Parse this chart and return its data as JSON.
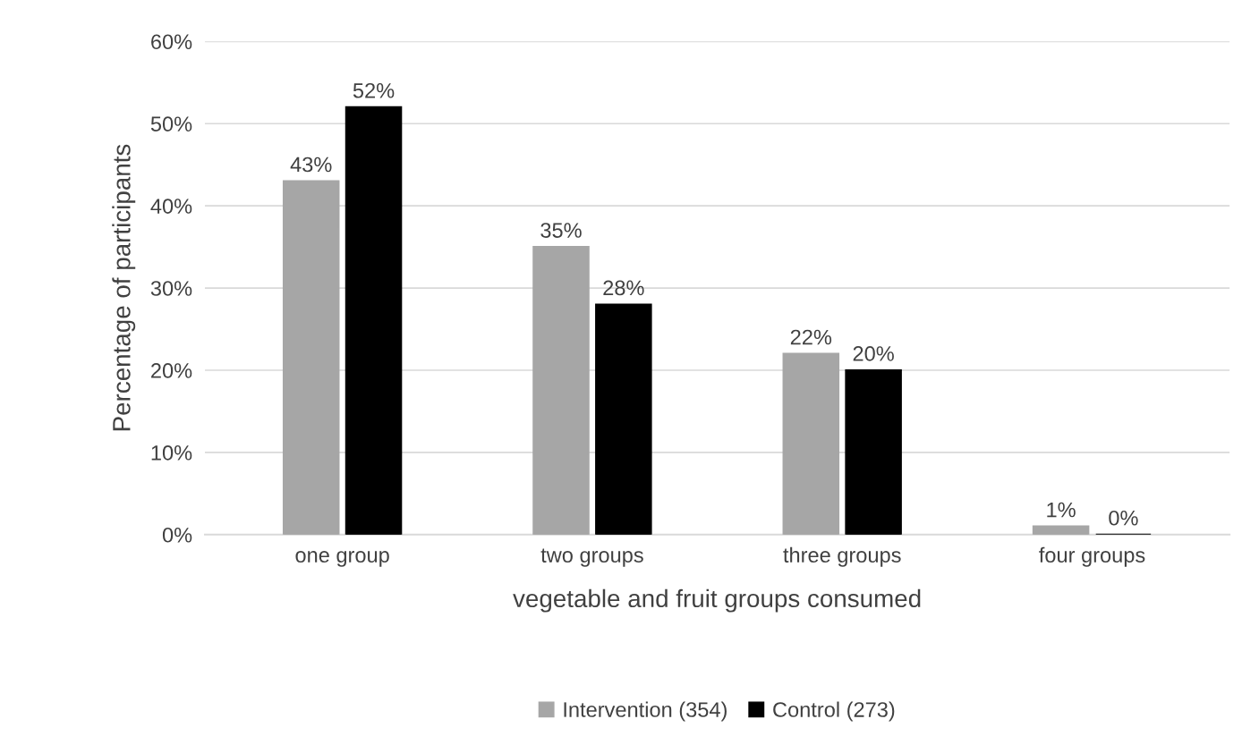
{
  "chart_data": {
    "type": "bar",
    "xlabel": "vegetable and fruit groups consumed",
    "ylabel": "Percentage of participants",
    "categories": [
      "one group",
      "two groups",
      "three groups",
      "four groups"
    ],
    "series": [
      {
        "name": "Intervention (354)",
        "color": "#a6a6a6",
        "values": [
          43,
          35,
          22,
          1
        ],
        "value_labels": [
          "43%",
          "35%",
          "22%",
          "1%"
        ]
      },
      {
        "name": "Control (273)",
        "color": "#000000",
        "values": [
          52,
          28,
          20,
          0
        ],
        "value_labels": [
          "52%",
          "28%",
          "20%",
          "0%"
        ]
      }
    ],
    "ylim": [
      0,
      60
    ],
    "yticks": [
      {
        "value": 0,
        "label": "0%"
      },
      {
        "value": 10,
        "label": "10%"
      },
      {
        "value": 20,
        "label": "20%"
      },
      {
        "value": 30,
        "label": "30%"
      },
      {
        "value": 40,
        "label": "40%"
      },
      {
        "value": 50,
        "label": "50%"
      },
      {
        "value": 60,
        "label": "60%"
      }
    ],
    "grid": "y",
    "legend": "bottom"
  }
}
